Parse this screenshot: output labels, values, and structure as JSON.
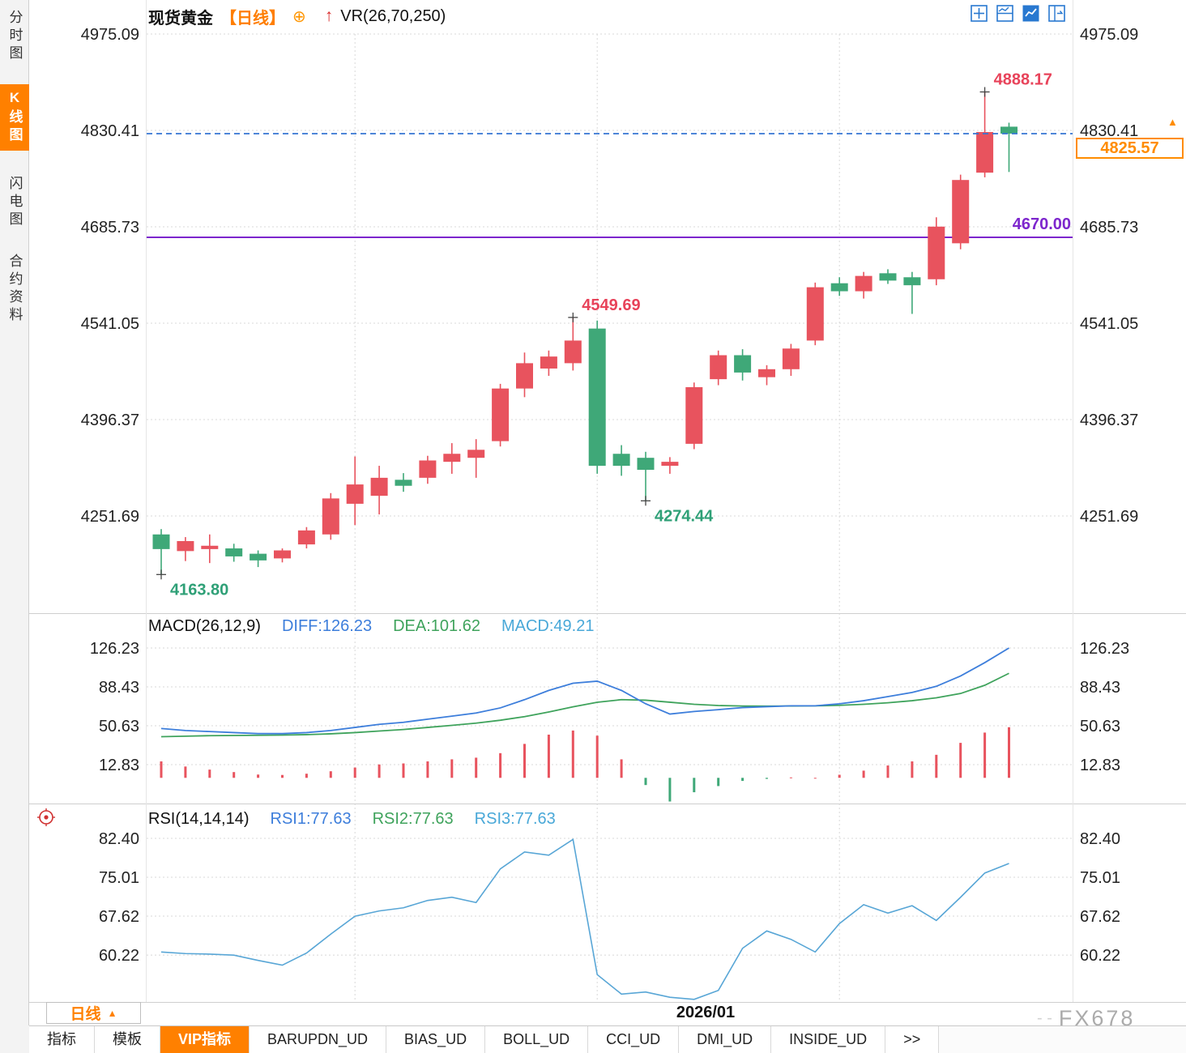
{
  "app": {
    "title_symbol": "现货黄金",
    "title_period": "【日线】",
    "plus_icon": "⊕",
    "up_arrow_icon": "↑",
    "overlay_indicator": "VR(26,70,250)",
    "watermark_prefix": "- -",
    "watermark": "FX678"
  },
  "sidebar": {
    "items": [
      {
        "label": "分时图",
        "active": false
      },
      {
        "label": "K线图",
        "active": true
      },
      {
        "label": "闪电图",
        "active": false
      },
      {
        "label": "合约资料",
        "active": false
      }
    ]
  },
  "period_selector": {
    "label": "日线",
    "arrow": "▲"
  },
  "x_axis": {
    "date_label": "2026/01"
  },
  "price_markers": {
    "current_price": "4825.57",
    "support_level": "4670.00",
    "marker_arrow": "▲"
  },
  "macd_header": {
    "title": "MACD(26,12,9)",
    "diff": "DIFF:126.23",
    "dea": "DEA:101.62",
    "macd": "MACD:49.21"
  },
  "rsi_header": {
    "title": "RSI(14,14,14)",
    "rsi1": "RSI1:77.63",
    "rsi2": "RSI2:77.63",
    "rsi3": "RSI3:77.63"
  },
  "bottom_tabs": {
    "items": [
      {
        "label": "指标",
        "active": false
      },
      {
        "label": "模板",
        "active": false
      },
      {
        "label": "VIP指标",
        "active": true
      },
      {
        "label": "BARUPDN_UD",
        "active": false
      },
      {
        "label": "BIAS_UD",
        "active": false
      },
      {
        "label": "BOLL_UD",
        "active": false
      },
      {
        "label": "CCI_UD",
        "active": false
      },
      {
        "label": "DMI_UD",
        "active": false
      },
      {
        "label": "INSIDE_UD",
        "active": false
      },
      {
        "label": ">>",
        "active": false
      }
    ]
  },
  "colors": {
    "up": "#E8535E",
    "down": "#3FA878",
    "accent_orange": "#FF8000",
    "current_price_line": "#3575D3",
    "support_line": "#7D26CD",
    "diff_line": "#3D7EDB",
    "dea_line": "#3FA35C",
    "rsi_line": "#58A6D6",
    "annotation_up": "#E8435A",
    "annotation_down": "#2FA077"
  },
  "chart_data": {
    "type": "candlestick",
    "title": "现货黄金 日线",
    "price_ticks": [
      4975.09,
      4830.41,
      4685.73,
      4541.05,
      4396.37,
      4251.69
    ],
    "candles_ohlc": [
      [
        4224,
        4232,
        4163.8,
        4202
      ],
      [
        4199,
        4220,
        4184,
        4214
      ],
      [
        4202,
        4224,
        4181,
        4207
      ],
      [
        4203,
        4210,
        4183,
        4191
      ],
      [
        4195,
        4200,
        4175,
        4185
      ],
      [
        4188,
        4203,
        4182,
        4200
      ],
      [
        4209,
        4235,
        4203,
        4230
      ],
      [
        4224,
        4286,
        4216,
        4278
      ],
      [
        4270,
        4341,
        4238,
        4299
      ],
      [
        4282,
        4327,
        4254,
        4309
      ],
      [
        4306,
        4316,
        4288,
        4297
      ],
      [
        4309,
        4342,
        4300,
        4335
      ],
      [
        4333,
        4361,
        4315,
        4345
      ],
      [
        4339,
        4367,
        4309,
        4351
      ],
      [
        4364,
        4450,
        4356,
        4443
      ],
      [
        4443,
        4497,
        4430,
        4481
      ],
      [
        4473,
        4500,
        4462,
        4491
      ],
      [
        4481,
        4549.69,
        4470,
        4515
      ],
      [
        4533,
        4545,
        4315,
        4327
      ],
      [
        4345,
        4358,
        4312,
        4327
      ],
      [
        4339,
        4348,
        4274.44,
        4321
      ],
      [
        4327,
        4340,
        4315,
        4333
      ],
      [
        4360,
        4452,
        4352,
        4445
      ],
      [
        4457,
        4500,
        4448,
        4493
      ],
      [
        4493,
        4502,
        4455,
        4467
      ],
      [
        4460,
        4478,
        4448,
        4472
      ],
      [
        4472,
        4510,
        4462,
        4503
      ],
      [
        4515,
        4602,
        4508,
        4595
      ],
      [
        4601,
        4610,
        4582,
        4589
      ],
      [
        4589,
        4618,
        4578,
        4612
      ],
      [
        4616,
        4622,
        4600,
        4605
      ],
      [
        4610,
        4618,
        4555,
        4598
      ],
      [
        4607,
        4700,
        4598,
        4686
      ],
      [
        4661,
        4764,
        4652,
        4756
      ],
      [
        4767,
        4888.17,
        4760,
        4828
      ],
      [
        4836,
        4842,
        4768,
        4825.57
      ]
    ],
    "current_price": 4825.57,
    "support_level": 4670.0,
    "annotations": [
      {
        "text": "4888.17",
        "candle": 34,
        "at": "high",
        "color": "up"
      },
      {
        "text": "4549.69",
        "candle": 17,
        "at": "high",
        "color": "up"
      },
      {
        "text": "4274.44",
        "candle": 20,
        "at": "low",
        "color": "down"
      },
      {
        "text": "4163.80",
        "candle": 0,
        "at": "low",
        "color": "down"
      }
    ],
    "grid_candle_indices": [
      8,
      18,
      28
    ],
    "macd": {
      "ticks": [
        126.23,
        88.43,
        50.63,
        12.83
      ],
      "diff": [
        48,
        46,
        45,
        44,
        43,
        43,
        44,
        46,
        49,
        52,
        54,
        57,
        60,
        63,
        68,
        76,
        85,
        92,
        94,
        85,
        72,
        62,
        64.5,
        66.3,
        68.3,
        69.2,
        70,
        70,
        72,
        75,
        79,
        83,
        89,
        99,
        112,
        126.23
      ],
      "dea": [
        40,
        40.5,
        41,
        41.2,
        41.4,
        41.6,
        42,
        42.8,
        44,
        45.5,
        47,
        49,
        51,
        53.2,
        56,
        59.5,
        64,
        69,
        73.5,
        76,
        75.5,
        73.5,
        71.5,
        70.3,
        69.8,
        69.7,
        69.8,
        70,
        70.5,
        71.5,
        73,
        75,
        77.8,
        82,
        90,
        101.62
      ],
      "hist": [
        16,
        11,
        8,
        5.6,
        3.2,
        2.8,
        4,
        6.4,
        10,
        13,
        14,
        16,
        18,
        19.6,
        24,
        33,
        42,
        46,
        41,
        18,
        -7,
        -23,
        -14,
        -8,
        -3,
        -1,
        0.4,
        0,
        3,
        7,
        12,
        16,
        22.4,
        34,
        44,
        49.21
      ]
    },
    "rsi": {
      "ticks": [
        82.4,
        75.01,
        67.62,
        60.22
      ],
      "values": [
        60.8,
        60.5,
        60.4,
        60.2,
        59.2,
        58.3,
        60.6,
        64.2,
        67.6,
        68.6,
        69.2,
        70.6,
        71.2,
        70.2,
        76.6,
        79.8,
        79.2,
        82.2,
        56.5,
        52.8,
        53.2,
        52.2,
        51.8,
        53.5,
        61.5,
        64.8,
        63.2,
        60.8,
        66.2,
        69.8,
        68.2,
        69.6,
        66.8,
        71.2,
        75.8,
        77.63
      ]
    }
  }
}
